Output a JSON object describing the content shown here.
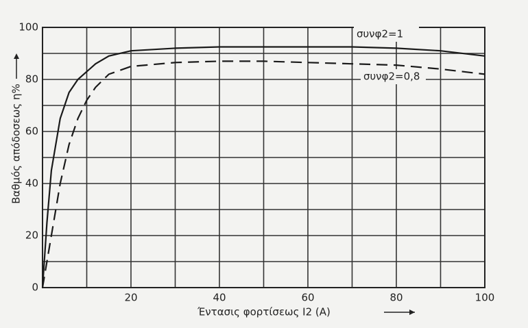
{
  "chart_data": {
    "type": "line",
    "x_label": "Έντασις φορτίσεως I2 (A)",
    "y_label": "Βαθμός απόδοσεως η%",
    "x": [
      0,
      1,
      2,
      4,
      6,
      8,
      10,
      12,
      15,
      20,
      30,
      40,
      50,
      60,
      70,
      80,
      90,
      100
    ],
    "series": [
      {
        "name": "συνφ2=1",
        "color": "#1a1a1a",
        "dash": false,
        "values": [
          0,
          25,
          45,
          65,
          75,
          80,
          83,
          86,
          89,
          91,
          92,
          92.5,
          92.5,
          92.5,
          92.5,
          92,
          91,
          89
        ]
      },
      {
        "name": "συνφ2=0,8",
        "color": "#1a1a1a",
        "dash": true,
        "values": [
          0,
          10,
          20,
          40,
          55,
          65,
          72,
          77,
          82,
          85,
          86.5,
          87,
          87,
          86.5,
          86,
          85.5,
          84,
          82
        ]
      }
    ],
    "xlim": [
      0,
      100
    ],
    "ylim": [
      0,
      100
    ],
    "xticks": [
      20,
      40,
      60,
      80,
      100
    ],
    "yticks": [
      0,
      20,
      40,
      60,
      80,
      100
    ],
    "xminor": [
      10,
      30,
      50,
      70,
      90
    ],
    "yminor": [
      10,
      30,
      50,
      70,
      90
    ],
    "grid": true
  }
}
